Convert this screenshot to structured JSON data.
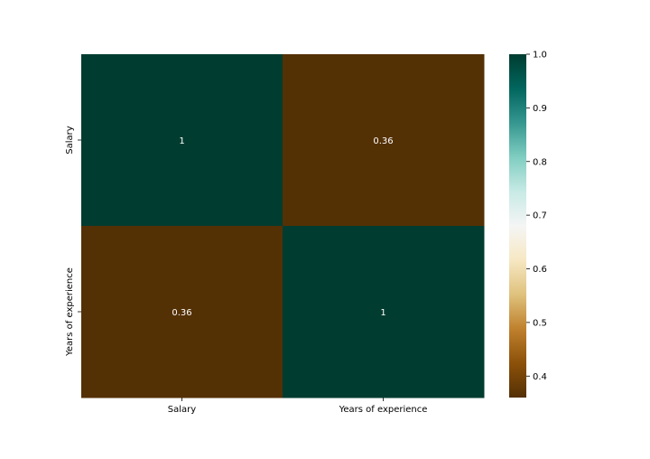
{
  "chart_data": {
    "type": "heatmap",
    "x_labels": [
      "Salary",
      "Years of experience"
    ],
    "y_labels": [
      "Salary",
      "Years of experience"
    ],
    "values": [
      [
        1,
        0.36
      ],
      [
        0.36,
        1
      ]
    ],
    "annotations": [
      [
        "1",
        "0.36"
      ],
      [
        "0.36",
        "1"
      ]
    ],
    "colormap": "BrBG",
    "vmin": 0.36,
    "vmax": 1.0,
    "colorbar_ticks": [
      "0.4",
      "0.5",
      "0.6",
      "0.7",
      "0.8",
      "0.9",
      "1.0"
    ],
    "colorbar_tick_values": [
      0.4,
      0.5,
      0.6,
      0.7,
      0.8,
      0.9,
      1.0
    ],
    "title": "",
    "xlabel": "",
    "ylabel": "",
    "colors": {
      "low": "#543005",
      "high": "#003c30",
      "annotation_text": "#ffffff",
      "axis_text": "#000000"
    }
  }
}
